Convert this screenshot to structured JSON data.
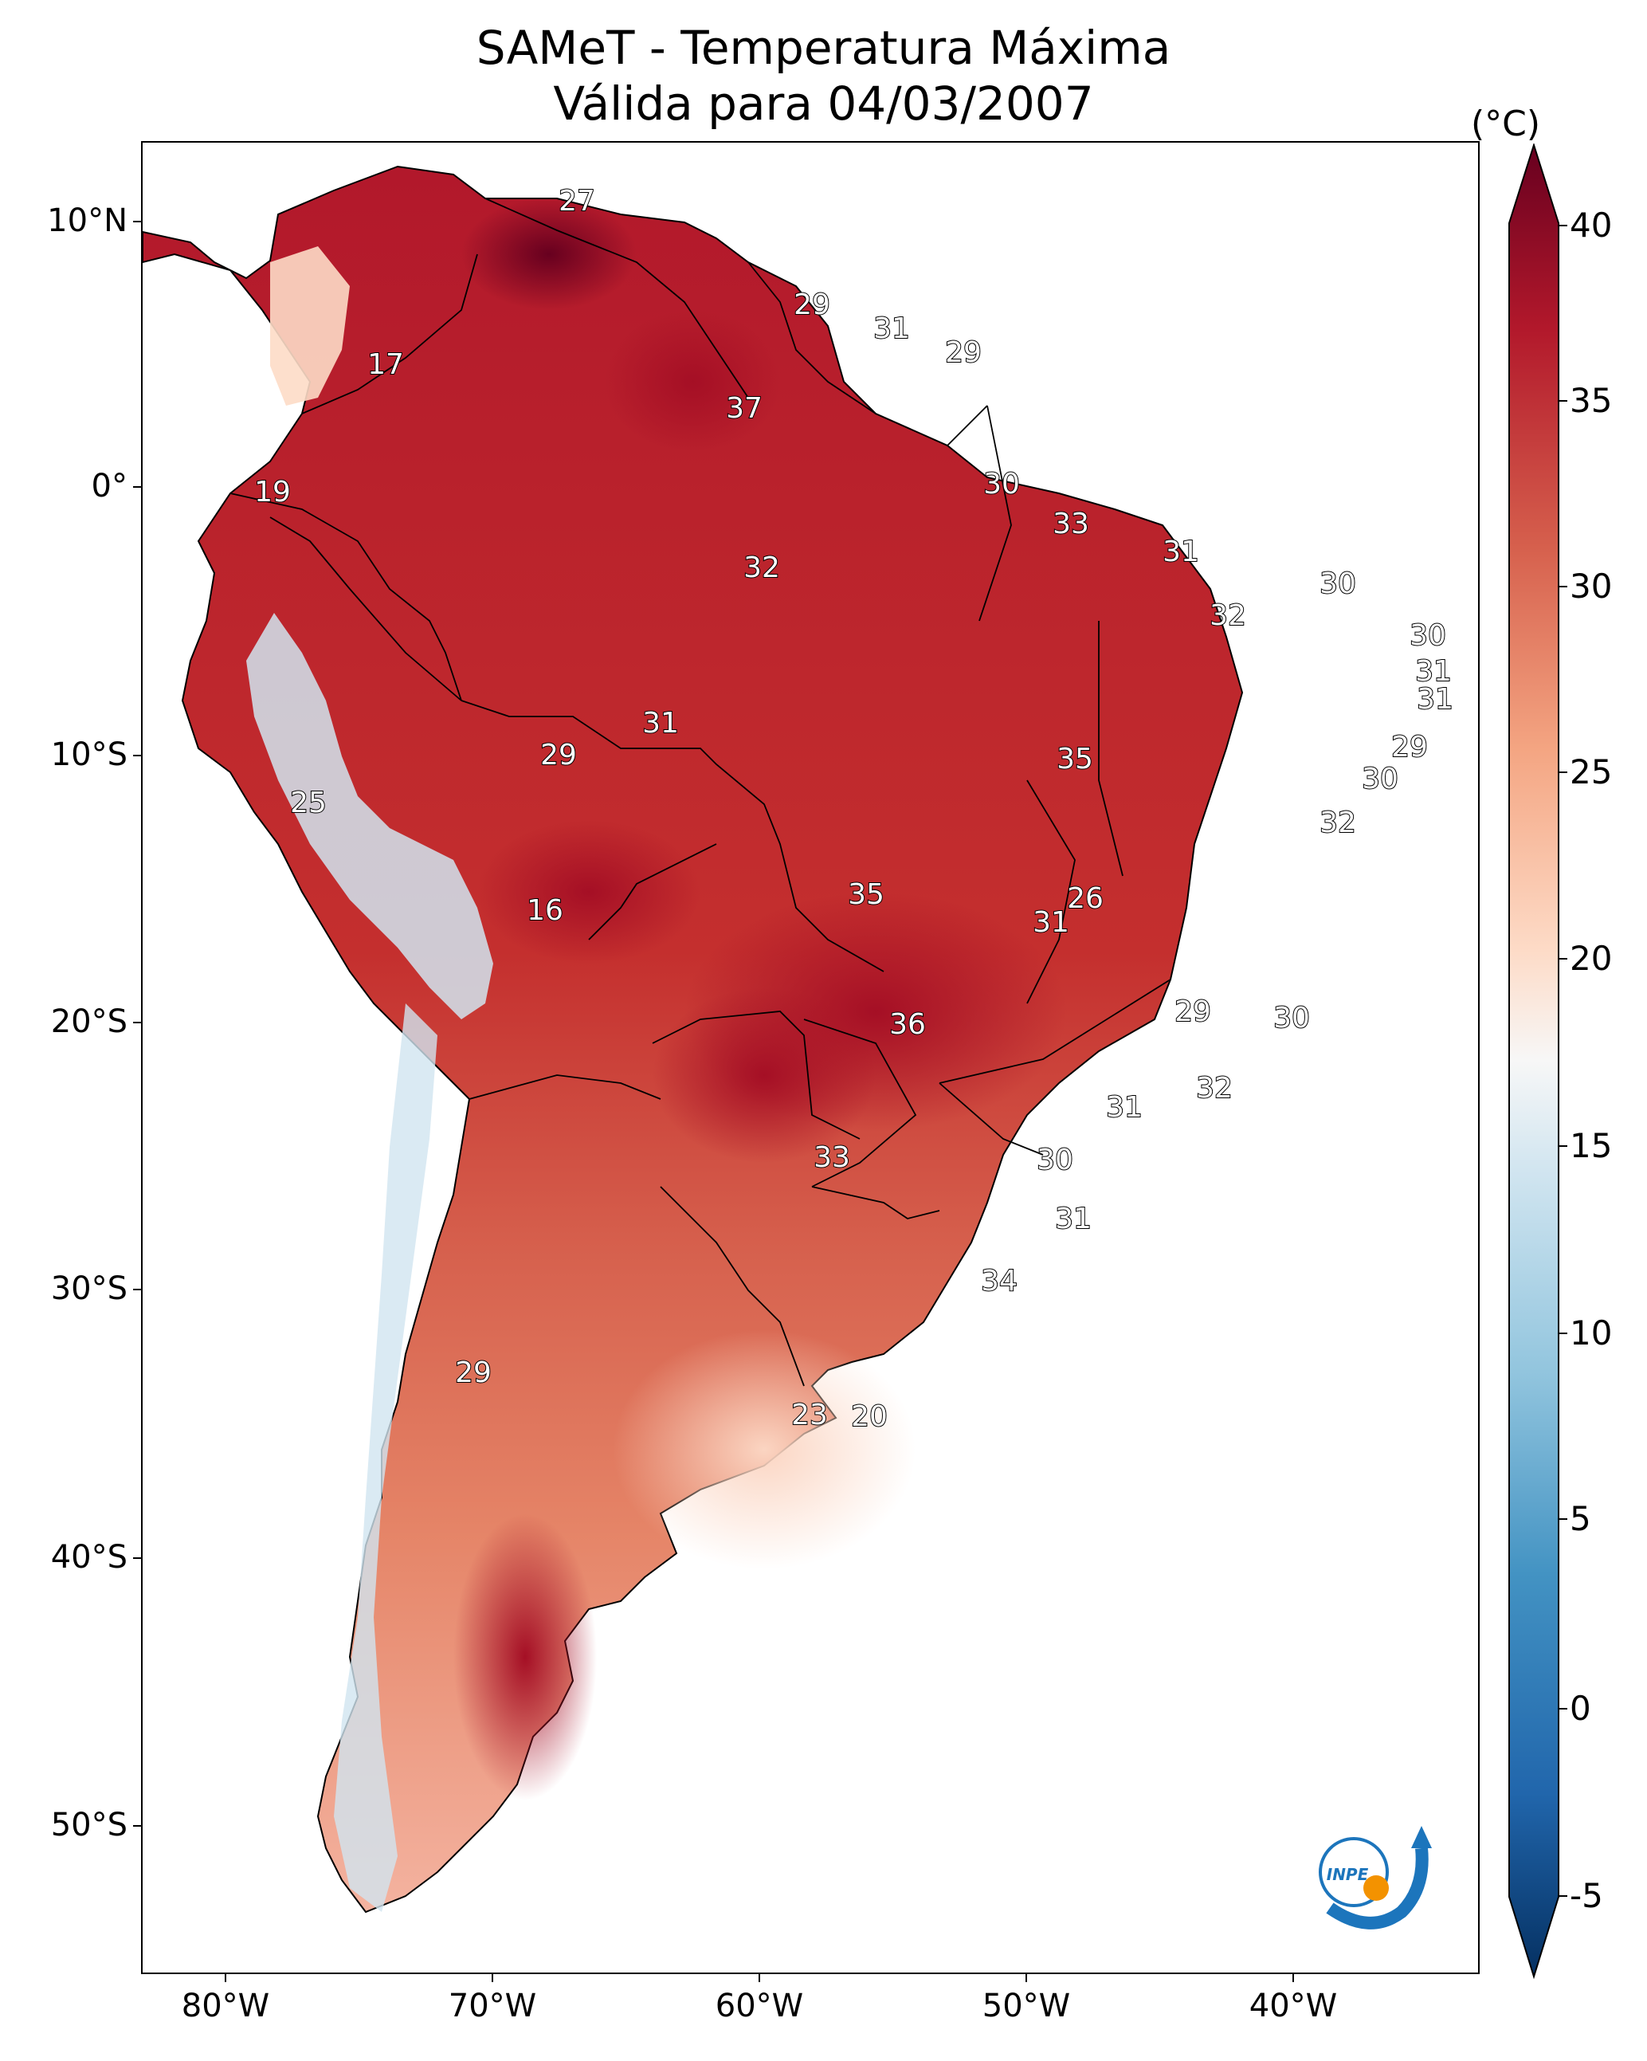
{
  "title": {
    "line1": "SAMeT - Temperatura Máxima",
    "line2": "Válida para 04/03/2007"
  },
  "axes": {
    "lat_labels": [
      "10°N",
      "0°",
      "10°S",
      "20°S",
      "30°S",
      "40°S",
      "50°S"
    ],
    "lon_labels": [
      "80°W",
      "70°W",
      "60°W",
      "50°W",
      "40°W"
    ]
  },
  "colorbar": {
    "unit": "(°C)",
    "ticks": [
      "40",
      "35",
      "30",
      "25",
      "20",
      "15",
      "10",
      "5",
      "0",
      "-5"
    ],
    "range": [
      -5,
      40
    ],
    "colors": [
      "#053061",
      "#2166ac",
      "#4393c3",
      "#92c5de",
      "#d1e5f0",
      "#f7f7f7",
      "#fddbc7",
      "#f4a582",
      "#d6604d",
      "#b2182b",
      "#67001f"
    ]
  },
  "map": {
    "region": "South America",
    "ocean_color": "#ffffff",
    "border_color": "#000000",
    "temperature_labels": [
      "27",
      "17",
      "29",
      "31",
      "29",
      "37",
      "19",
      "30",
      "33",
      "31",
      "32",
      "30",
      "32",
      "30",
      "31",
      "31",
      "31",
      "29",
      "29",
      "35",
      "30",
      "25",
      "32",
      "16",
      "35",
      "26",
      "31",
      "36",
      "29",
      "30",
      "32",
      "31",
      "33",
      "30",
      "31",
      "34",
      "29",
      "23",
      "20"
    ]
  },
  "logo": {
    "text": "INPE"
  }
}
